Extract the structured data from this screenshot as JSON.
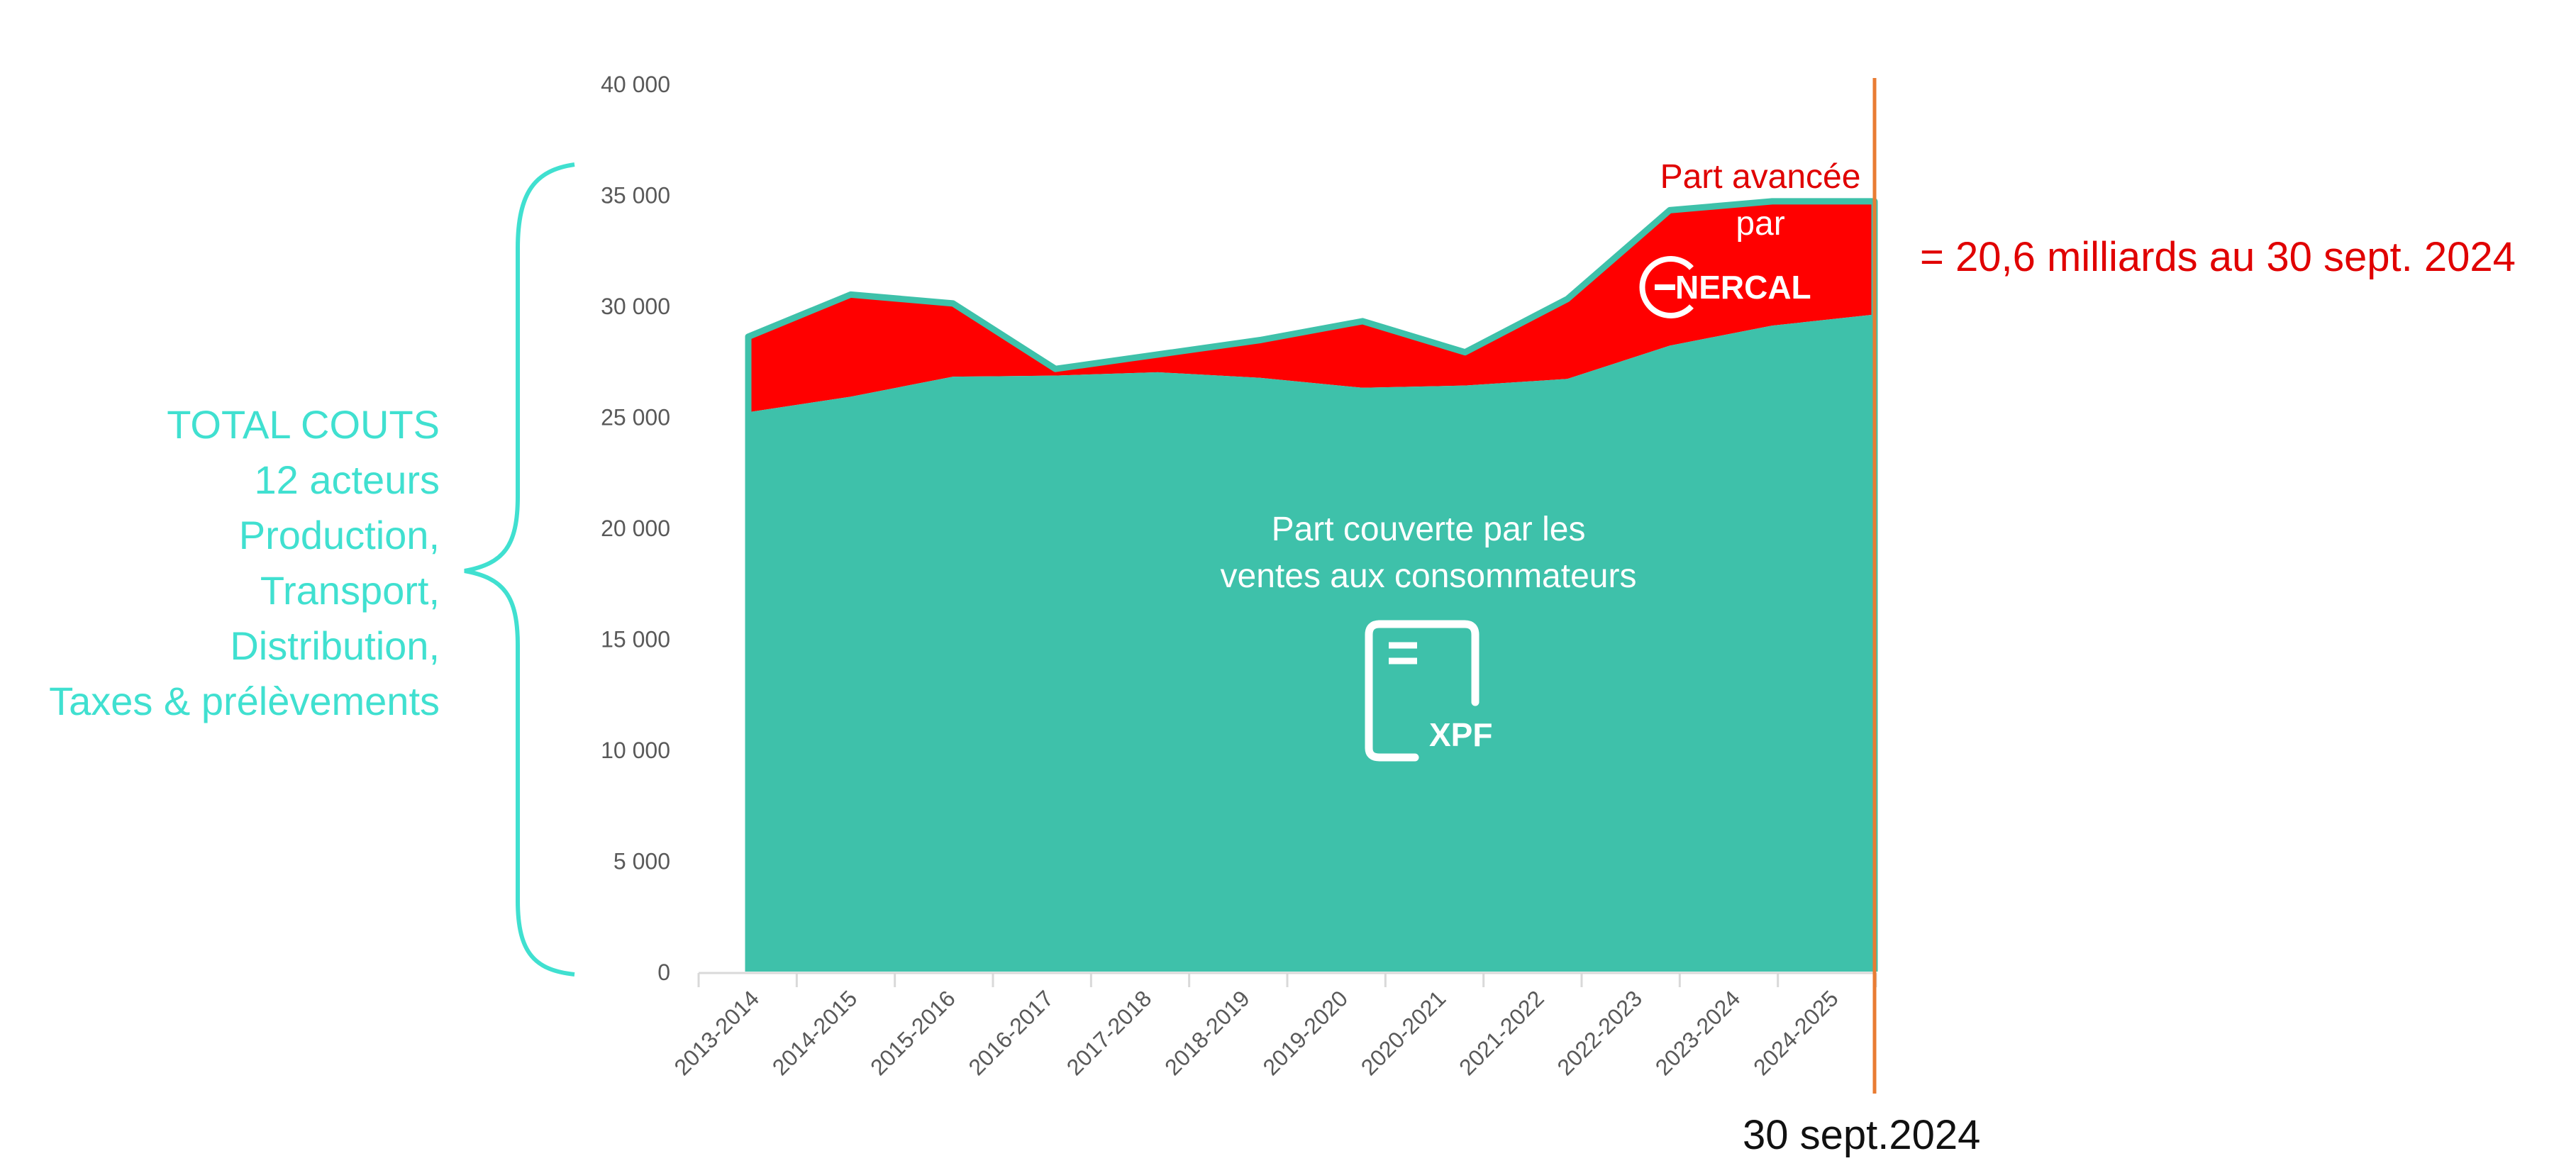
{
  "colors": {
    "covered_area": "#3EC1AA",
    "advanced_area": "#FF0000",
    "outline": "#3EC1AA",
    "cutoff_line": "#E97C33",
    "left_label": "#40E0D0",
    "axis_text": "#595959",
    "red_text": "#E00000"
  },
  "left_label": {
    "lines": [
      "TOTAL COUTS",
      "12 acteurs",
      "Production,",
      "Transport,",
      "Distribution,",
      "Taxes & prélèvements"
    ]
  },
  "annotations": {
    "covered_line1": "Part couverte par les",
    "covered_line2": "ventes aux consommateurs",
    "advanced_line1": "Part avancée",
    "advanced_line2": "par",
    "enercal_logo_text": "NERCAL",
    "right_note": "= 20,6 milliards au 30 sept. 2024",
    "cutoff_label": "30 sept.2024",
    "xpf_icon_text": "XPF"
  },
  "chart_data": {
    "type": "area",
    "categories": [
      "2013-2014",
      "2014-2015",
      "2015-2016",
      "2016-2017",
      "2017-2018",
      "2018-2019",
      "2019-2020",
      "2020-2021",
      "2021-2022",
      "2022-2023",
      "2023-2024",
      "2024-2025"
    ],
    "series": [
      {
        "values": [
          25200,
          25900,
          26800,
          26850,
          27000,
          26750,
          26300,
          26400,
          26700,
          28200,
          29100,
          29600
        ]
      },
      {
        "values": [
          3400,
          4600,
          3300,
          300,
          800,
          1700,
          3000,
          1500,
          3600,
          6100,
          5600,
          5100
        ]
      }
    ],
    "stacked": true,
    "ylim": [
      0,
      40000
    ],
    "yticks": [
      0,
      5000,
      10000,
      15000,
      20000,
      25000,
      30000,
      35000,
      40000
    ],
    "ytick_labels": [
      "0",
      "5 000",
      "10 000",
      "15 000",
      "20 000",
      "25 000",
      "30 000",
      "35 000",
      "40 000"
    ],
    "grid": false,
    "title": "",
    "xlabel": "",
    "ylabel": ""
  }
}
